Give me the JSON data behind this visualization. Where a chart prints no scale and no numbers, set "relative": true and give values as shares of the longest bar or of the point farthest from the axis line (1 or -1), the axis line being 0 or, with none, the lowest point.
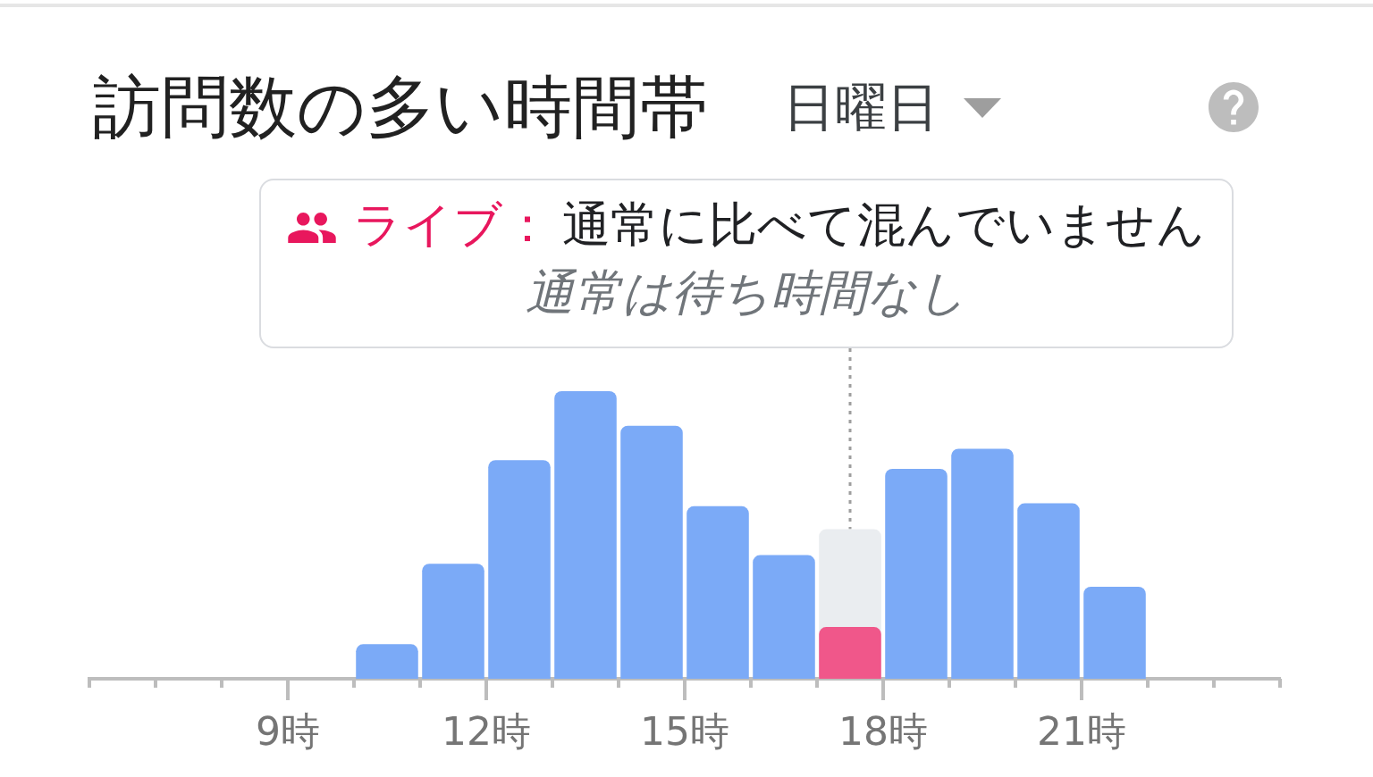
{
  "chart_data": {
    "type": "bar",
    "title": "訪問数の多い時間帯",
    "subtitle": "日曜日",
    "annotations": [
      "ライブ：",
      "通常に比べて混んでいません",
      {
        "text": "通常は待ち時間なし",
        "x": 17.5,
        "y": 0.52
      }
    ],
    "x": [
      10.5,
      11.5,
      12.5,
      13.5,
      14.5,
      15.5,
      16.5,
      17.5,
      18.5,
      19.5,
      20.5,
      21.5
    ],
    "series": [
      {
        "colors": [
          "#7baaf7",
          "#7baaf7",
          "#7baaf7",
          "#7baaf7",
          "#7baaf7",
          "#7baaf7",
          "#7baaf7",
          "#eaedf0",
          "#7baaf7",
          "#7baaf7",
          "#7baaf7",
          "#7baaf7"
        ],
        "values": [
          0.12,
          0.4,
          0.76,
          1,
          0.88,
          0.6,
          0.43,
          0.52,
          0.73,
          0.8,
          0.61,
          0.32
        ]
      },
      {
        "color": "#f0578a",
        "values": [
          null,
          null,
          null,
          null,
          null,
          null,
          null,
          0.18,
          null,
          null,
          null,
          null
        ]
      }
    ],
    "relative": true,
    "xlim": [
      6,
      24
    ],
    "xticks": [
      {
        "value": 6,
        "label": null
      },
      {
        "value": 7,
        "label": null
      },
      {
        "value": 8,
        "label": null
      },
      {
        "value": 9,
        "label": "9時"
      },
      {
        "value": 10,
        "label": null
      },
      {
        "value": 11,
        "label": null
      },
      {
        "value": 12,
        "label": "12時"
      },
      {
        "value": 13,
        "label": null
      },
      {
        "value": 14,
        "label": null
      },
      {
        "value": 15,
        "label": "15時"
      },
      {
        "value": 16,
        "label": null
      },
      {
        "value": 17,
        "label": null
      },
      {
        "value": 18,
        "label": "18時"
      },
      {
        "value": 19,
        "label": null
      },
      {
        "value": 20,
        "label": null
      },
      {
        "value": 21,
        "label": "21時"
      },
      {
        "value": 22,
        "label": null
      },
      {
        "value": 23,
        "label": null
      },
      {
        "value": 24,
        "label": null
      }
    ]
  }
}
